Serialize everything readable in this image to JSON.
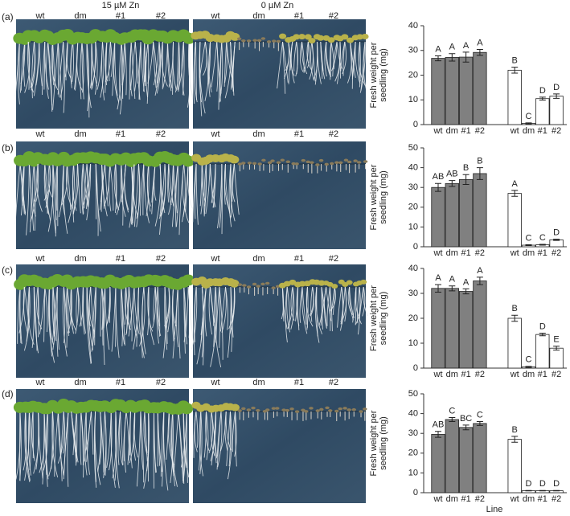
{
  "conditions": [
    "15 µM Zn",
    "0 µM Zn"
  ],
  "panels": [
    {
      "label": "(a)",
      "photos": [
        {
          "labels": [
            "wt",
            "dm",
            "#1",
            "#2"
          ]
        },
        {
          "labels": [
            "wt",
            "dm",
            "#1",
            "#2"
          ]
        }
      ]
    },
    {
      "label": "(b)",
      "photos": [
        {
          "labels": [
            "wt",
            "dm",
            "#1",
            "#2"
          ]
        },
        {
          "labels": [
            "wt",
            "dm",
            "#1",
            "#2"
          ]
        }
      ]
    },
    {
      "label": "(c)",
      "photos": [
        {
          "labels": [
            "wt",
            "dm",
            "#1",
            "#2"
          ]
        },
        {
          "labels": [
            "wt",
            "dm",
            "#1",
            "#2"
          ]
        }
      ]
    },
    {
      "label": "(d)",
      "photos": [
        {
          "labels": [
            "wt",
            "dm",
            "#1",
            "#2"
          ]
        },
        {
          "labels": [
            "wt",
            "dm",
            "#1",
            "#2"
          ]
        }
      ]
    }
  ],
  "chart_data": [
    {
      "type": "bar",
      "ylabel": [
        "Fresh weight per",
        "seedling (mg)"
      ],
      "categories": [
        "wt",
        "dm",
        "#1",
        "#2",
        "wt",
        "dm",
        "#1",
        "#2"
      ],
      "values": [
        26.8,
        27.2,
        27.3,
        29.2,
        22,
        0.5,
        10.5,
        11.5
      ],
      "errors": [
        1,
        1.5,
        2,
        1.2,
        1.2,
        0.2,
        0.6,
        0.9
      ],
      "letters": [
        "A",
        "A",
        "A",
        "A",
        "B",
        "C",
        "D",
        "D"
      ],
      "colors": [
        "#808080",
        "#808080",
        "#808080",
        "#808080",
        "#ffffff",
        "#ffffff",
        "#ffffff",
        "#ffffff"
      ],
      "ylim": [
        0,
        40
      ],
      "yticks": [
        0,
        10,
        20,
        30,
        40
      ]
    },
    {
      "type": "bar",
      "ylabel": [
        "Fresh weight per",
        "seedling (mg)"
      ],
      "categories": [
        "wt",
        "dm",
        "#1",
        "#2",
        "wt",
        "dm",
        "#1",
        "#2"
      ],
      "values": [
        30,
        32,
        34,
        37,
        27,
        0.8,
        1,
        3.5
      ],
      "errors": [
        2,
        1.5,
        2.5,
        3,
        1.5,
        0.2,
        0.2,
        0.3
      ],
      "letters": [
        "AB",
        "AB",
        "B",
        "B",
        "A",
        "C",
        "C",
        "D"
      ],
      "colors": [
        "#808080",
        "#808080",
        "#808080",
        "#808080",
        "#ffffff",
        "#ffffff",
        "#ffffff",
        "#ffffff"
      ],
      "ylim": [
        0,
        50
      ],
      "yticks": [
        0,
        10,
        20,
        30,
        40,
        50
      ]
    },
    {
      "type": "bar",
      "ylabel": [
        "Fresh weight per",
        "seedling (mg)"
      ],
      "categories": [
        "wt",
        "dm",
        "#1",
        "#2",
        "wt",
        "dm",
        "#1",
        "#2"
      ],
      "values": [
        32,
        32,
        30.8,
        35,
        20,
        0.5,
        13.5,
        8
      ],
      "errors": [
        1.5,
        1,
        1,
        1.5,
        1.2,
        0.2,
        0.5,
        0.8
      ],
      "letters": [
        "A",
        "A",
        "A",
        "A",
        "B",
        "C",
        "D",
        "E"
      ],
      "colors": [
        "#808080",
        "#808080",
        "#808080",
        "#808080",
        "#ffffff",
        "#ffffff",
        "#ffffff",
        "#ffffff"
      ],
      "ylim": [
        0,
        40
      ],
      "yticks": [
        0,
        10,
        20,
        30,
        40
      ]
    },
    {
      "type": "bar",
      "ylabel": [
        "Fresh weight per",
        "seedling (mg)"
      ],
      "xlabel": "Line",
      "categories": [
        "wt",
        "dm",
        "#1",
        "#2",
        "wt",
        "dm",
        "#1",
        "#2"
      ],
      "values": [
        29.5,
        37,
        33,
        35,
        27,
        1,
        1,
        1
      ],
      "errors": [
        1.5,
        1,
        1.2,
        1,
        1.5,
        0.1,
        0.1,
        0.1
      ],
      "letters": [
        "AB",
        "C",
        "BC",
        "C",
        "B",
        "D",
        "D",
        "D"
      ],
      "colors": [
        "#808080",
        "#808080",
        "#808080",
        "#808080",
        "#ffffff",
        "#ffffff",
        "#ffffff",
        "#ffffff"
      ],
      "ylim": [
        0,
        50
      ],
      "yticks": [
        0,
        10,
        20,
        30,
        40,
        50
      ]
    }
  ]
}
